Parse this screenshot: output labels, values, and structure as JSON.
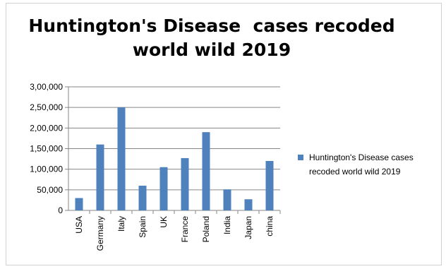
{
  "chart_data": {
    "type": "bar",
    "title": [
      "Huntington's Disease  cases recoded",
      "world wild 2019"
    ],
    "categories": [
      "USA",
      "Germany",
      "Italy",
      "Spain",
      "UK",
      "France",
      "Poland",
      "India",
      "Japan",
      "china"
    ],
    "series": [
      {
        "name": "Huntington's Disease cases recoded world wild 2019",
        "values": [
          30000,
          160000,
          250000,
          60000,
          105000,
          127000,
          190000,
          51000,
          27000,
          120000
        ]
      }
    ],
    "y_ticks": [
      "0",
      "50,000",
      "1,00,000",
      "1,50,000",
      "2,00,000",
      "2,50,000",
      "3,00,000"
    ],
    "ylim": [
      0,
      300000
    ],
    "xlabel": "",
    "ylabel": "",
    "grid": true,
    "legend_position": "right",
    "colors": {
      "bar": "#4f81bd",
      "grid": "#868686",
      "axis": "#868686"
    }
  }
}
